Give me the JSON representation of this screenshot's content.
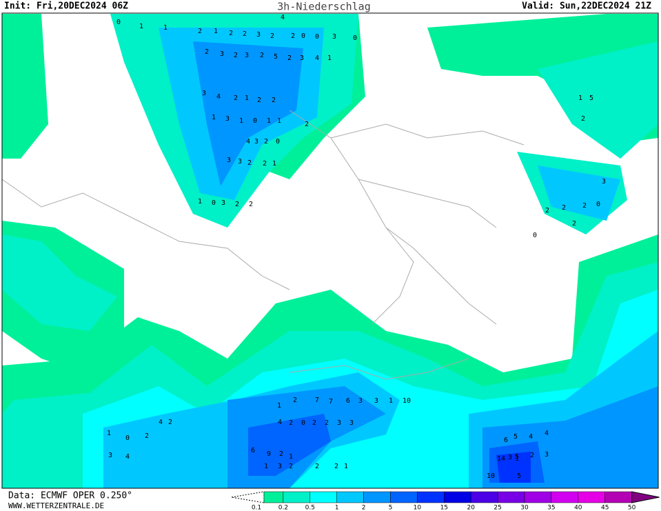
{
  "header": {
    "init": "Init: Fri,20DEC2024 06Z",
    "title": "3h-Niederschlag",
    "valid": "Valid: Sun,22DEC2024 21Z"
  },
  "footer": {
    "data": "Data: ECMWF OPER 0.250°",
    "site": "WWW.WETTERZENTRALE.DE"
  },
  "legend": {
    "ticks": [
      0.1,
      0.2,
      0.5,
      1,
      2,
      5,
      10,
      15,
      20,
      25,
      30,
      35,
      40,
      45,
      50
    ],
    "colors": [
      "#00f09a",
      "#00f0c8",
      "#00ffff",
      "#00c8ff",
      "#0096ff",
      "#0064ff",
      "#0032ff",
      "#0000e6",
      "#4b00e6",
      "#7800e6",
      "#a000e6",
      "#d200f0",
      "#e600e6",
      "#b400b4",
      "#800080"
    ]
  },
  "map": {
    "labels": [
      0,
      1,
      1,
      2,
      1,
      2,
      2,
      3,
      2,
      4,
      2,
      0,
      0,
      3,
      0,
      2,
      3,
      2,
      3,
      2,
      5,
      2,
      3,
      4,
      1,
      3,
      4,
      2,
      1,
      2,
      2,
      1,
      3,
      1,
      0,
      1,
      1,
      2,
      4,
      3,
      2,
      0,
      3,
      3,
      2,
      2,
      1,
      1,
      0,
      3,
      2,
      2,
      1,
      5,
      2,
      3,
      2,
      0,
      2,
      2,
      0,
      2,
      6,
      5,
      4,
      4,
      1,
      10,
      14,
      5,
      2,
      3,
      5,
      3,
      6,
      9,
      2,
      1,
      1,
      2,
      7,
      7,
      6,
      3,
      3,
      1,
      10,
      4,
      2,
      0,
      2,
      2,
      3,
      3,
      1,
      3,
      2,
      2,
      2,
      1,
      4,
      2,
      1,
      0,
      2,
      3,
      4
    ]
  }
}
